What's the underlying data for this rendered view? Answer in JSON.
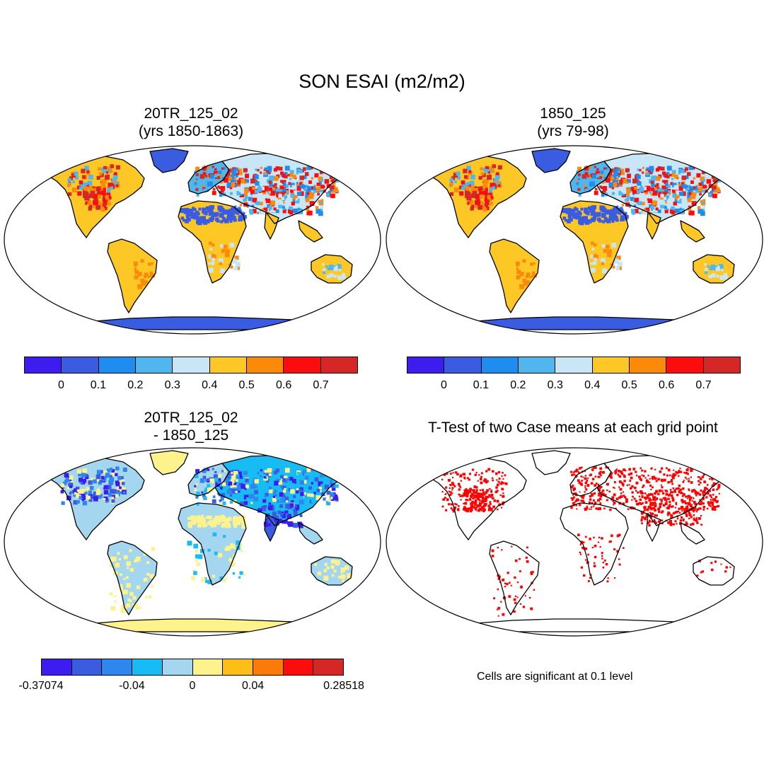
{
  "figure": {
    "title": "SON ESAI (m2/m2)"
  },
  "panels": {
    "tl": {
      "title1": "20TR_125_02",
      "title2": "(yrs 1850-1863)"
    },
    "tr": {
      "title1": "1850_125",
      "title2": "(yrs 79-98)"
    },
    "bl": {
      "title1": "20TR_125_02",
      "title2": "- 1850_125"
    },
    "br": {
      "title1": "T-Test of two Case means at each grid point"
    }
  },
  "colorbar_main": {
    "colors": [
      "#3d1cf0",
      "#3a5ce0",
      "#1f8cf0",
      "#4fb6ee",
      "#c8e6f6",
      "#fdc726",
      "#fc8a0a",
      "#fc0d0d",
      "#d62626"
    ],
    "labels": [
      "0",
      "0.1",
      "0.2",
      "0.3",
      "0.4",
      "0.5",
      "0.6",
      "0.7"
    ]
  },
  "colorbar_diff": {
    "colors": [
      "#3d1cf0",
      "#3a5ce0",
      "#2f86ec",
      "#17bcf4",
      "#a5d6f0",
      "#fdf28c",
      "#fdbe18",
      "#fc7a0a",
      "#fc0d0d",
      "#d62626"
    ],
    "labels": [
      "-0.37074",
      "-0.04",
      "0",
      "0.04",
      "0.28518"
    ]
  },
  "significance_note": "Cells are significant at 0.1 level",
  "colors": {
    "ocean": "#ffffff",
    "coast": "#000000",
    "sig": "#ff0000"
  }
}
